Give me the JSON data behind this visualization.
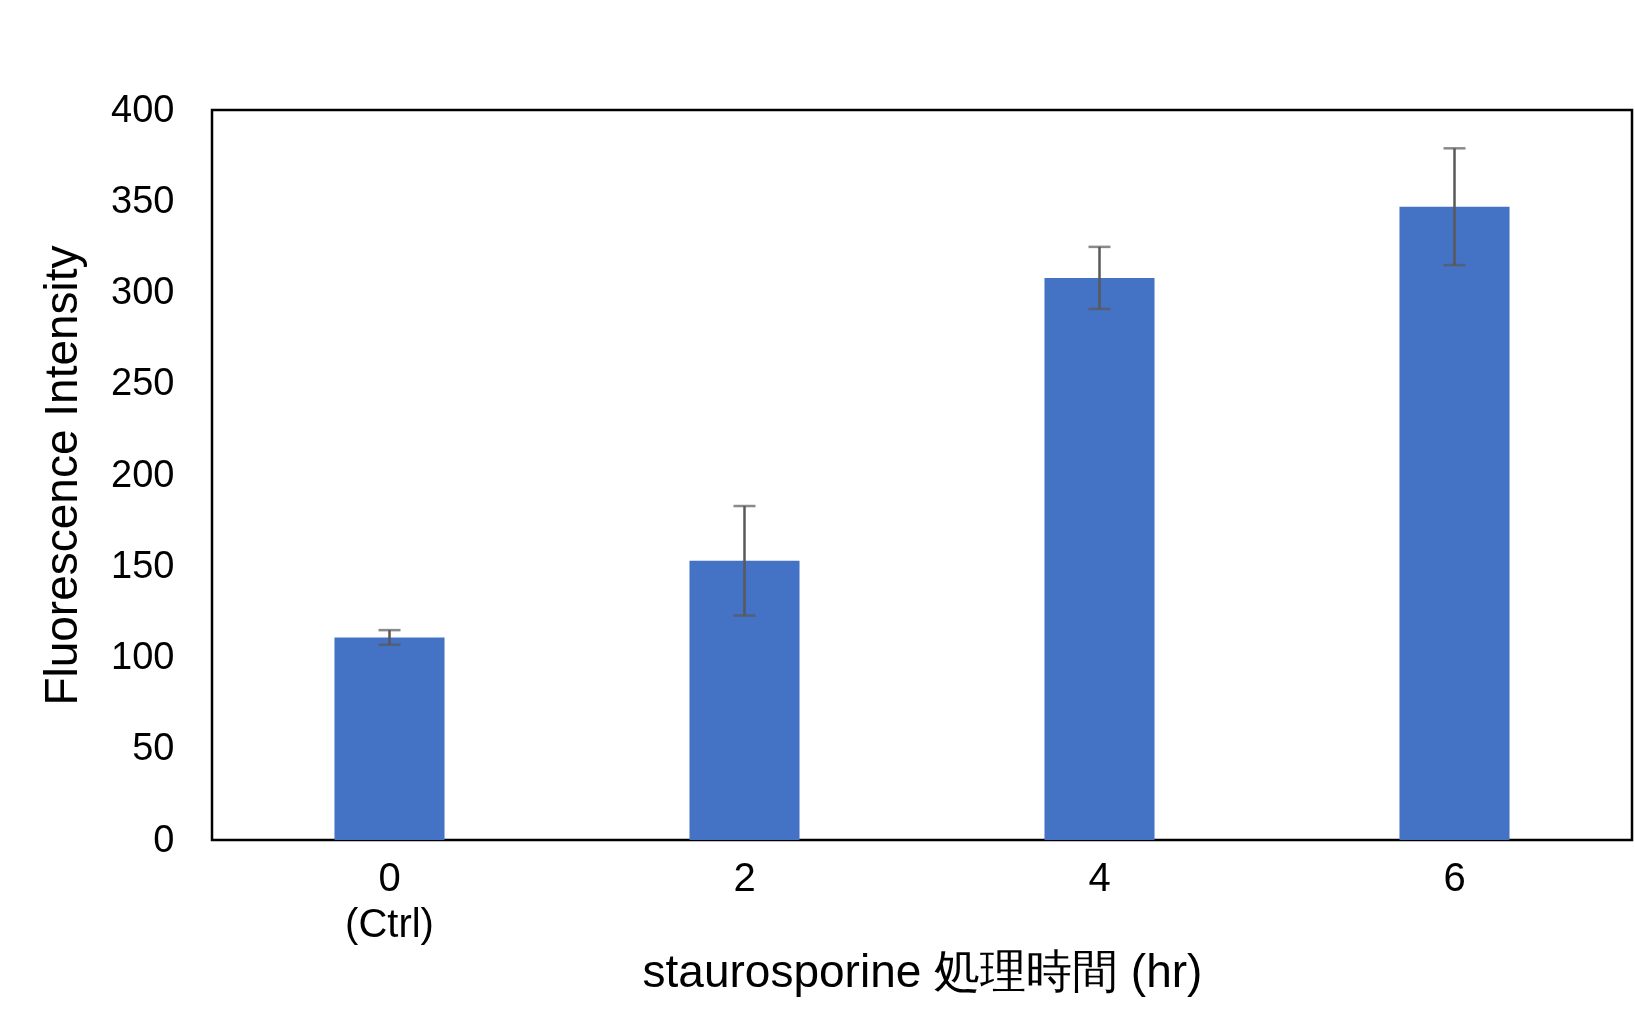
{
  "chart_data": {
    "type": "bar",
    "xlabel": "staurosporine 処理時間 (hr)",
    "ylabel": "Fluorescence Intensity",
    "categories": [
      "0\n(Ctrl)",
      "2",
      "4",
      "6"
    ],
    "values": [
      111,
      153,
      308,
      347
    ],
    "errors": [
      4,
      30,
      17,
      32
    ],
    "color": "#4472c4",
    "ylim": [
      0,
      400
    ],
    "yticks": [
      0,
      50,
      100,
      150,
      200,
      250,
      300,
      350,
      400
    ],
    "grid": false
  }
}
